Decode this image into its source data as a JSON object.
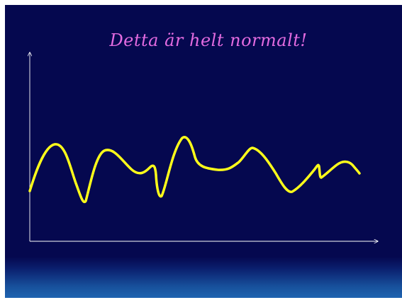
{
  "slide": {
    "title": "Detta är helt normalt!"
  },
  "colors": {
    "background": "#05084f",
    "title": "#e36be0",
    "curve": "#ffff1a",
    "axes": "#ffffff"
  },
  "graph": {
    "curve_description": "wavy yellow line fluctuating around a steady level"
  }
}
